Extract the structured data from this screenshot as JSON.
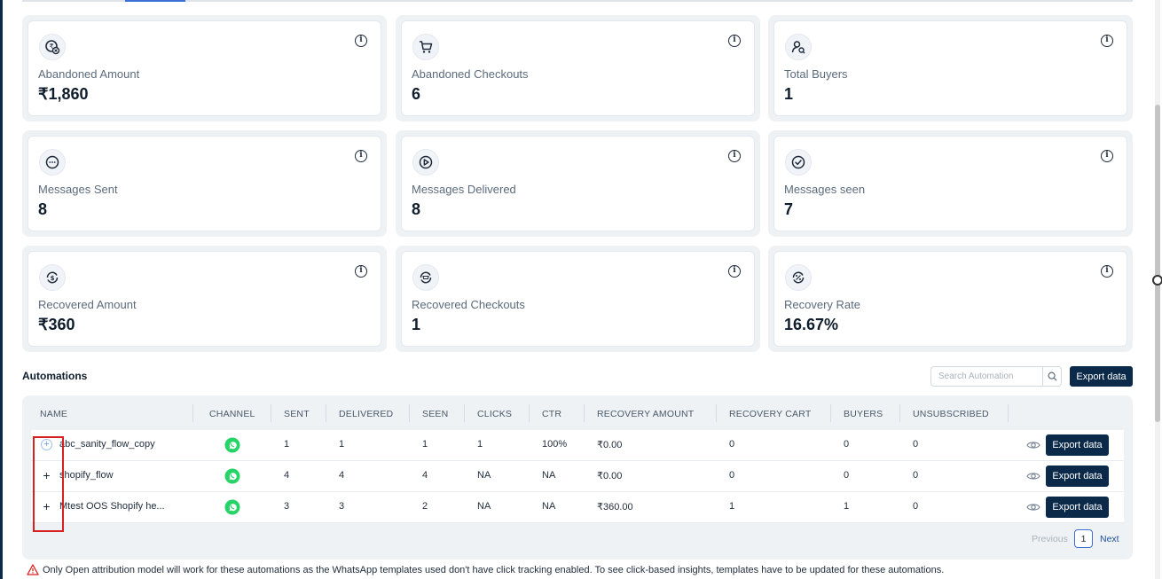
{
  "cards": [
    {
      "label": "Abandoned Amount",
      "value": "₹1,860",
      "icon": "money-icon"
    },
    {
      "label": "Abandoned Checkouts",
      "value": "6",
      "icon": "cart-icon"
    },
    {
      "label": "Total Buyers",
      "value": "1",
      "icon": "buyer-icon"
    },
    {
      "label": "Messages Sent",
      "value": "8",
      "icon": "message-icon"
    },
    {
      "label": "Messages Delivered",
      "value": "8",
      "icon": "delivered-icon"
    },
    {
      "label": "Messages seen",
      "value": "7",
      "icon": "seen-check-icon"
    },
    {
      "label": "Recovered Amount",
      "value": "₹360",
      "icon": "recovered-amount-icon"
    },
    {
      "label": "Recovered Checkouts",
      "value": "1",
      "icon": "recovered-checkout-icon"
    },
    {
      "label": "Recovery Rate",
      "value": "16.67%",
      "icon": "recovery-rate-icon"
    }
  ],
  "automations": {
    "title": "Automations",
    "search_placeholder": "Search Automation",
    "export_label": "Export data",
    "columns": [
      "NAME",
      "CHANNEL",
      "SENT",
      "DELIVERED",
      "SEEN",
      "CLICKS",
      "CTR",
      "RECOVERY AMOUNT",
      "RECOVERY CART",
      "BUYERS",
      "UNSUBSCRIBED"
    ],
    "rows": [
      {
        "name": "abc_sanity_flow_copy",
        "sent": "1",
        "delivered": "1",
        "seen": "1",
        "clicks": "1",
        "ctr": "100%",
        "recovery_amount": "₹0.00",
        "recovery_cart": "0",
        "buyers": "0",
        "unsubscribed": "0",
        "export": "Export data"
      },
      {
        "name": "shopify_flow",
        "sent": "4",
        "delivered": "4",
        "seen": "4",
        "clicks": "NA",
        "ctr": "NA",
        "recovery_amount": "₹0.00",
        "recovery_cart": "0",
        "buyers": "0",
        "unsubscribed": "0",
        "export": "Export data"
      },
      {
        "name": "Mtest OOS Shopify he...",
        "sent": "3",
        "delivered": "3",
        "seen": "2",
        "clicks": "NA",
        "ctr": "NA",
        "recovery_amount": "₹360.00",
        "recovery_cart": "1",
        "buyers": "1",
        "unsubscribed": "0",
        "export": "Export data"
      }
    ],
    "pagination": {
      "prev": "Previous",
      "page": "1",
      "next": "Next"
    }
  },
  "warning": "Only Open attribution model will work for these automations as the WhatsApp templates used don't have click tracking enabled. To see click-based insights, templates have to be updated for these automations.",
  "colors": {
    "primary": "#0b2a4a",
    "accent": "#3b6fd8",
    "whatsapp": "#25d366",
    "warning": "#d92020"
  }
}
